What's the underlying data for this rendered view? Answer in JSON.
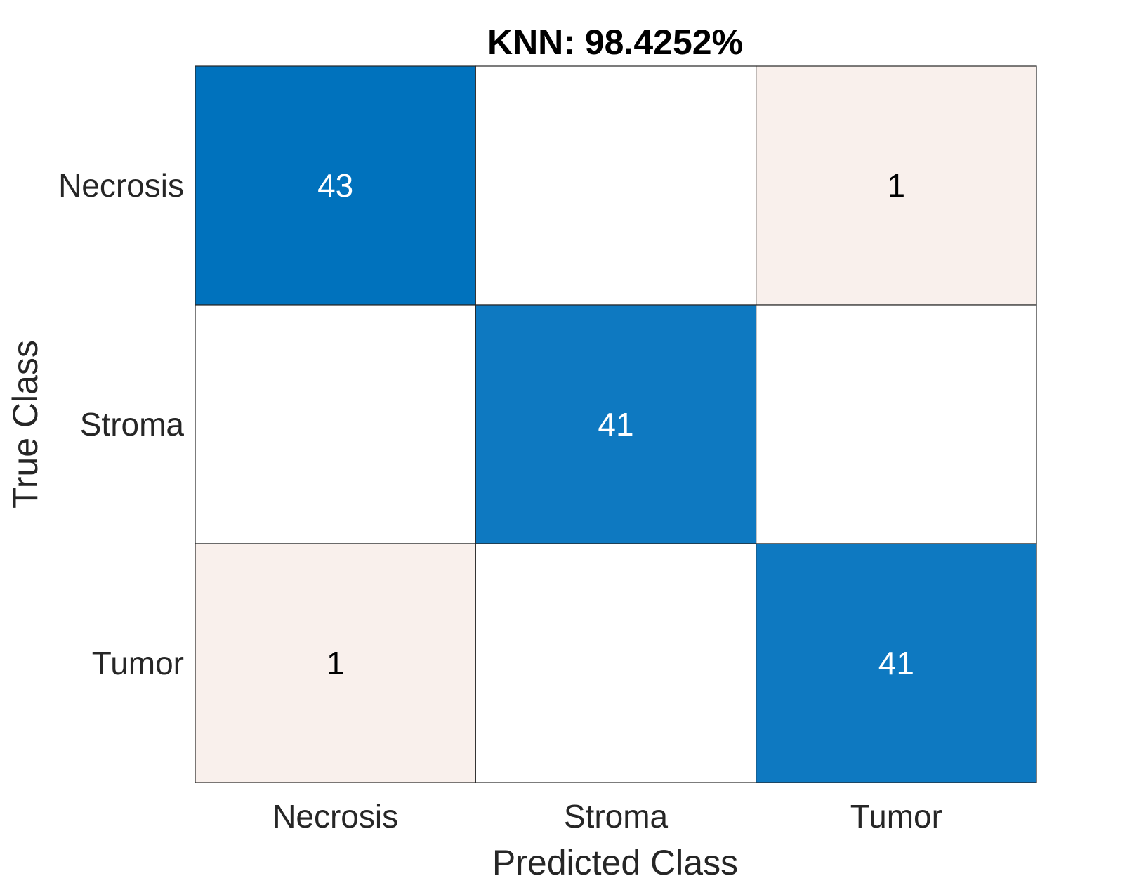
{
  "chart_data": {
    "type": "heatmap",
    "title": "KNN: 98.4252%",
    "xlabel": "Predicted Class",
    "ylabel": "True Class",
    "x_categories": [
      "Necrosis",
      "Stroma",
      "Tumor"
    ],
    "y_categories": [
      "Necrosis",
      "Stroma",
      "Tumor"
    ],
    "matrix": [
      [
        43,
        0,
        1
      ],
      [
        0,
        41,
        0
      ],
      [
        1,
        0,
        41
      ]
    ],
    "show_zero_values": false,
    "colors": {
      "max_fill": "#0072bd",
      "high_fill": "#0e79c1",
      "low_fill": "#f9f0ec",
      "zero_fill": "#ffffff",
      "grid_line": "#262626",
      "dark_cell_text": "#ffffff",
      "light_cell_text": "#000000"
    }
  }
}
